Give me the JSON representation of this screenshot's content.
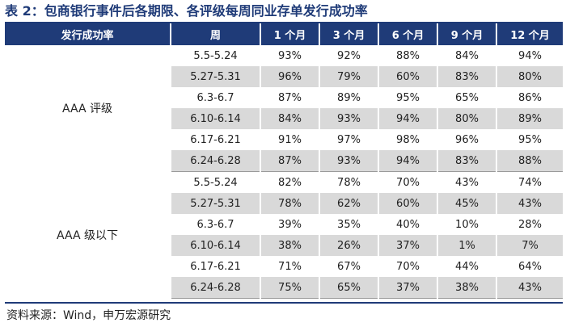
{
  "title": "表 2：包商银行事件后各期限、各评级每周同业存单发行成功率",
  "headers": [
    "发行成功率",
    "周",
    "1 个月",
    "3 个月",
    "6 个月",
    "9 个月",
    "12 个月"
  ],
  "groups": [
    {
      "label": "AAA 评级",
      "rows": [
        {
          "week": "5.5-5.24",
          "values": [
            "93%",
            "92%",
            "88%",
            "84%",
            "94%"
          ]
        },
        {
          "week": "5.27-5.31",
          "values": [
            "96%",
            "79%",
            "60%",
            "83%",
            "80%"
          ]
        },
        {
          "week": "6.3-6.7",
          "values": [
            "87%",
            "89%",
            "95%",
            "65%",
            "86%"
          ]
        },
        {
          "week": "6.10-6.14",
          "values": [
            "84%",
            "93%",
            "94%",
            "80%",
            "89%"
          ]
        },
        {
          "week": "6.17-6.21",
          "values": [
            "91%",
            "97%",
            "98%",
            "96%",
            "95%"
          ]
        },
        {
          "week": "6.24-6.28",
          "values": [
            "87%",
            "93%",
            "94%",
            "83%",
            "88%"
          ]
        }
      ]
    },
    {
      "label": "AAA 级以下",
      "rows": [
        {
          "week": "5.5-5.24",
          "values": [
            "82%",
            "78%",
            "70%",
            "43%",
            "74%"
          ]
        },
        {
          "week": "5.27-5.31",
          "values": [
            "78%",
            "62%",
            "60%",
            "45%",
            "43%"
          ]
        },
        {
          "week": "6.3-6.7",
          "values": [
            "39%",
            "35%",
            "40%",
            "10%",
            "28%"
          ]
        },
        {
          "week": "6.10-6.14",
          "values": [
            "38%",
            "26%",
            "37%",
            "1%",
            "7%"
          ]
        },
        {
          "week": "6.17-6.21",
          "values": [
            "71%",
            "67%",
            "70%",
            "44%",
            "64%"
          ]
        },
        {
          "week": "6.24-6.28",
          "values": [
            "75%",
            "65%",
            "37%",
            "38%",
            "43%"
          ]
        }
      ]
    }
  ],
  "source": "资料来源：Wind，申万宏源研究",
  "colors": {
    "header_bg": "#1f3b78",
    "shade_bg": "#d9d9d9",
    "title_color": "#1f3b78"
  }
}
